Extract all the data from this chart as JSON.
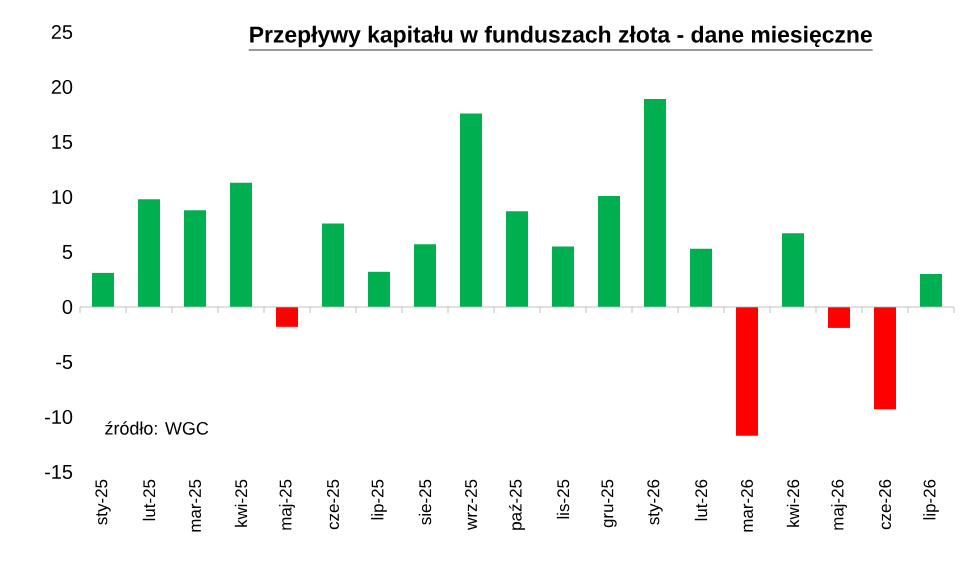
{
  "chart_data": {
    "type": "bar",
    "title": "Przepływy kapitału w funduszach złota - dane miesięczne",
    "categories": [
      "sty-25",
      "lut-25",
      "mar-25",
      "kwi-25",
      "maj-25",
      "cze-25",
      "lip-25",
      "sie-25",
      "wrz-25",
      "paź-25",
      "lis-25",
      "gru-25",
      "sty-26",
      "lut-26",
      "mar-26",
      "kwi-26",
      "maj-26",
      "cze-26",
      "lip-26"
    ],
    "values": [
      3.1,
      9.8,
      8.8,
      11.3,
      -1.8,
      7.6,
      3.2,
      5.7,
      17.6,
      8.7,
      5.5,
      10.1,
      18.9,
      5.3,
      -11.7,
      6.7,
      -1.9,
      -9.3,
      3.0
    ],
    "colors": [
      "#00b050",
      "#00b050",
      "#00b050",
      "#00b050",
      "#ff0000",
      "#00b050",
      "#00b050",
      "#00b050",
      "#00b050",
      "#00b050",
      "#00b050",
      "#00b050",
      "#00b050",
      "#00b050",
      "#ff0000",
      "#00b050",
      "#ff0000",
      "#ff0000",
      "#00b050"
    ],
    "ylim": [
      -15,
      25
    ],
    "yticks": [
      -15,
      -10,
      -5,
      0,
      5,
      10,
      15,
      20,
      25
    ],
    "annotations": [
      "źródło: WGC"
    ]
  }
}
